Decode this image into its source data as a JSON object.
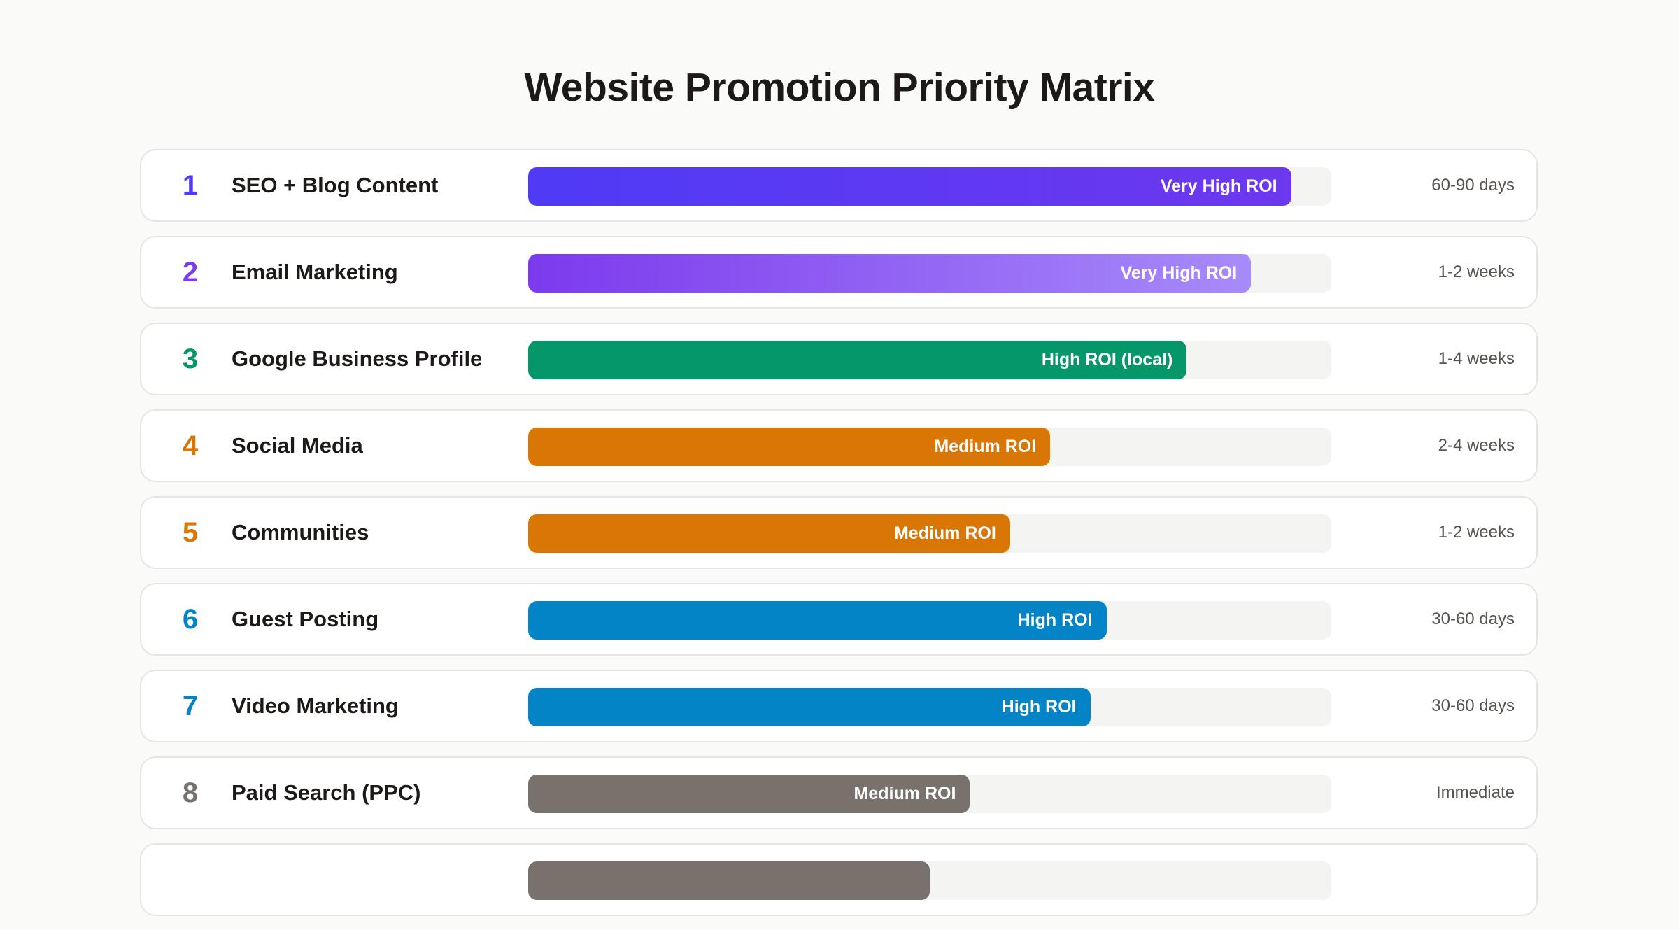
{
  "title": "Website Promotion Priority Matrix",
  "rows": [
    {
      "rank": "1",
      "channel": "SEO + Blog Content",
      "roi": "Very High ROI",
      "timeline": "60-90 days",
      "level": 0.95,
      "color": "#4f3af6",
      "color_end": "#6d38ee"
    },
    {
      "rank": "2",
      "channel": "Email Marketing",
      "roi": "Very High ROI",
      "timeline": "1-2 weeks",
      "level": 0.9,
      "color": "#7c3aed",
      "color_end": "#a78bfa"
    },
    {
      "rank": "3",
      "channel": "Google Business Profile",
      "roi": "High ROI (local)",
      "timeline": "1-4 weeks",
      "level": 0.82,
      "color": "#059669",
      "color_end": "#059669"
    },
    {
      "rank": "4",
      "channel": "Social Media",
      "roi": "Medium ROI",
      "timeline": "2-4 weeks",
      "level": 0.65,
      "color": "#d97706",
      "color_end": "#d97706"
    },
    {
      "rank": "5",
      "channel": "Communities",
      "roi": "Medium ROI",
      "timeline": "1-2 weeks",
      "level": 0.6,
      "color": "#d97706",
      "color_end": "#d97706"
    },
    {
      "rank": "6",
      "channel": "Guest Posting",
      "roi": "High ROI",
      "timeline": "30-60 days",
      "level": 0.72,
      "color": "#0284c7",
      "color_end": "#0284c7"
    },
    {
      "rank": "7",
      "channel": "Video Marketing",
      "roi": "High ROI",
      "timeline": "30-60 days",
      "level": 0.7,
      "color": "#0284c7",
      "color_end": "#0284c7"
    },
    {
      "rank": "8",
      "channel": "Paid Search (PPC)",
      "roi": "Medium ROI",
      "timeline": "Immediate",
      "level": 0.55,
      "color": "#78716c",
      "color_end": "#78716c"
    },
    {
      "level": 0.5,
      "color": "#78716c",
      "color_end": "#78716c"
    }
  ]
}
